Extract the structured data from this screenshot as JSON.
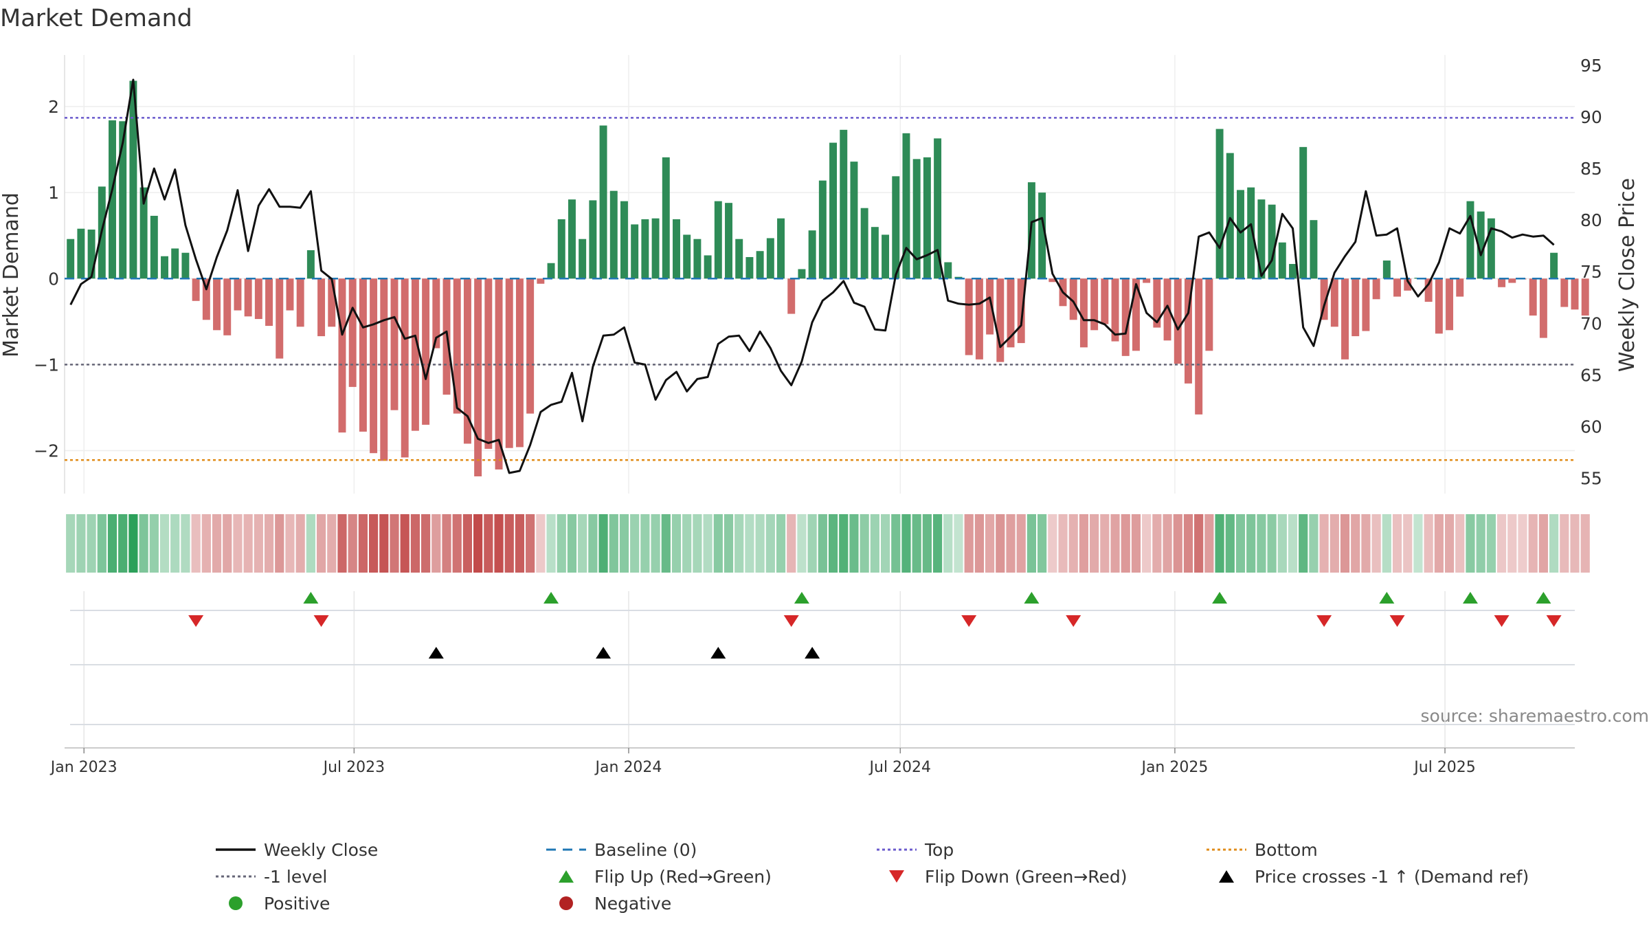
{
  "chart_data": {
    "type": "bar",
    "title": "Market Demand",
    "ylabel": "Market Demand",
    "y2label": "Weekly Close Price",
    "ylim": [
      -2.5,
      2.6
    ],
    "y2lim": [
      53.5,
      96
    ],
    "yticks": [
      2,
      1,
      0,
      -1,
      -2
    ],
    "y2ticks": [
      95,
      90,
      85,
      80,
      75,
      70,
      65,
      60,
      55
    ],
    "x_start": "2022-12-19",
    "x_end": "2025-09-26",
    "xticks": [
      {
        "date": "2023-01-01",
        "label": "Jan 2023"
      },
      {
        "date": "2023-07-01",
        "label": "Jul 2023"
      },
      {
        "date": "2024-01-01",
        "label": "Jan 2024"
      },
      {
        "date": "2024-07-01",
        "label": "Jul 2024"
      },
      {
        "date": "2025-01-01",
        "label": "Jan 2025"
      },
      {
        "date": "2025-07-01",
        "label": "Jul 2025"
      }
    ],
    "first_week": "2022-12-23",
    "demand": [
      0.46,
      0.58,
      0.57,
      1.07,
      1.84,
      1.83,
      2.3,
      1.06,
      0.73,
      0.26,
      0.35,
      0.3,
      -0.26,
      -0.48,
      -0.6,
      -0.66,
      -0.37,
      -0.44,
      -0.47,
      -0.55,
      -0.93,
      -0.37,
      -0.56,
      0.33,
      -0.67,
      -0.56,
      -1.79,
      -1.26,
      -1.78,
      -2.03,
      -2.12,
      -1.53,
      -2.08,
      -1.77,
      -1.7,
      -0.81,
      -1.35,
      -1.57,
      -1.92,
      -2.3,
      -1.98,
      -2.22,
      -1.97,
      -1.96,
      -1.57,
      -0.06,
      0.18,
      0.69,
      0.92,
      0.46,
      0.91,
      1.78,
      1.02,
      0.9,
      0.63,
      0.69,
      0.7,
      1.41,
      0.69,
      0.51,
      0.46,
      0.27,
      0.9,
      0.88,
      0.46,
      0.25,
      0.32,
      0.47,
      0.7,
      -0.41,
      0.11,
      0.56,
      1.14,
      1.58,
      1.73,
      1.36,
      0.82,
      0.6,
      0.51,
      1.19,
      1.69,
      1.39,
      1.41,
      1.63,
      0.19,
      0.02,
      -0.89,
      -0.94,
      -0.65,
      -0.97,
      -0.8,
      -0.75,
      1.12,
      1.0,
      -0.04,
      -0.32,
      -0.48,
      -0.8,
      -0.6,
      -0.53,
      -0.73,
      -0.9,
      -0.84,
      -0.05,
      -0.57,
      -0.72,
      -0.99,
      -1.22,
      -1.58,
      -0.84,
      1.74,
      1.46,
      1.03,
      1.06,
      0.92,
      0.86,
      0.42,
      0.17,
      1.53,
      0.68,
      -0.48,
      -0.56,
      -0.94,
      -0.67,
      -0.61,
      -0.24,
      0.21,
      -0.21,
      -0.14,
      0.01,
      -0.27,
      -0.64,
      -0.6,
      -0.21,
      0.9,
      0.78,
      0.7,
      -0.1,
      -0.05,
      -0.01,
      -0.43,
      -0.69,
      0.3,
      -0.33,
      -0.36,
      -0.43
    ],
    "weekly_close": [
      71.8,
      73.8,
      74.5,
      79.0,
      83.0,
      87.5,
      93.6,
      81.6,
      85.0,
      82.0,
      84.9,
      79.5,
      76.2,
      73.3,
      76.4,
      79.0,
      82.9,
      77.0,
      81.4,
      83.0,
      81.3,
      81.3,
      81.2,
      82.8,
      75.1,
      74.3,
      68.9,
      71.5,
      69.6,
      69.9,
      70.3,
      70.6,
      68.5,
      68.8,
      64.6,
      68.6,
      69.2,
      61.8,
      61.0,
      58.8,
      58.4,
      58.7,
      55.5,
      55.7,
      58.2,
      61.4,
      62.1,
      62.4,
      65.2,
      60.5,
      65.8,
      68.8,
      68.9,
      69.6,
      66.2,
      66.0,
      62.6,
      64.5,
      65.3,
      63.4,
      64.6,
      64.8,
      68.0,
      68.7,
      68.8,
      67.3,
      69.2,
      67.6,
      65.4,
      64.0,
      66.3,
      70.1,
      72.2,
      73.0,
      74.1,
      72.0,
      71.6,
      69.4,
      69.3,
      74.7,
      77.3,
      76.2,
      76.6,
      77.1,
      72.2,
      71.9,
      71.8,
      71.9,
      72.5,
      67.7,
      68.7,
      69.8,
      79.8,
      80.2,
      74.8,
      73.0,
      72.1,
      70.3,
      70.3,
      69.9,
      68.9,
      69.0,
      73.8,
      71.0,
      70.1,
      71.7,
      69.4,
      71.0,
      78.4,
      78.8,
      77.3,
      80.2,
      78.8,
      79.6,
      74.6,
      76.1,
      80.6,
      79.2,
      69.6,
      67.8,
      71.7,
      74.9,
      76.5,
      77.9,
      82.8,
      78.5,
      78.6,
      79.2,
      74.1,
      72.6,
      73.8,
      75.9,
      79.2,
      78.7,
      80.4,
      76.6,
      79.2,
      78.9,
      78.3,
      78.6,
      78.4,
      78.5,
      77.6
    ],
    "colorbar_positive": "#2e8b57",
    "colorbar_negative": "#c44e52",
    "top_level": 1.87,
    "bottom_level": -2.11,
    "minus1_level": -1,
    "flip_up_weeks": [
      23,
      46,
      70,
      92,
      110,
      126,
      134,
      141
    ],
    "flip_down_weeks": [
      12,
      24,
      69,
      86,
      96,
      120,
      127,
      137,
      142
    ],
    "price_cross_weeks": [
      35,
      51,
      62,
      71
    ],
    "source_text": "source: sharemaestro.com",
    "colors": {
      "bar_positive": "#2e8b57",
      "bar_negative": "#cd5c5c",
      "weekly_close": "#111111",
      "baseline": "#1f77b4",
      "top": "#6a5acd",
      "bottom": "#e08c1a",
      "minus1": "#666677",
      "flip_up": "#2ca02c",
      "flip_down": "#d62728",
      "price_cross": "#000000",
      "positive_dot": "#2ca02c",
      "negative_dot": "#b22222"
    },
    "legend": [
      {
        "key": "weekly_close",
        "label": "Weekly Close",
        "symbol": "line"
      },
      {
        "key": "baseline",
        "label": "Baseline (0)",
        "symbol": "dash"
      },
      {
        "key": "top",
        "label": "Top",
        "symbol": "dot"
      },
      {
        "key": "bottom",
        "label": "Bottom",
        "symbol": "dot"
      },
      {
        "key": "minus1",
        "label": "-1 level",
        "symbol": "dot"
      },
      {
        "key": "flip_up",
        "label": "Flip Up (Red→Green)",
        "symbol": "tri-up"
      },
      {
        "key": "flip_down",
        "label": "Flip Down (Green→Red)",
        "symbol": "tri-down"
      },
      {
        "key": "price_cross",
        "label": "Price crosses -1 ↑ (Demand ref)",
        "symbol": "tri-up"
      },
      {
        "key": "positive_dot",
        "label": "Positive",
        "symbol": "circle"
      },
      {
        "key": "negative_dot",
        "label": "Negative",
        "symbol": "circle"
      }
    ]
  }
}
